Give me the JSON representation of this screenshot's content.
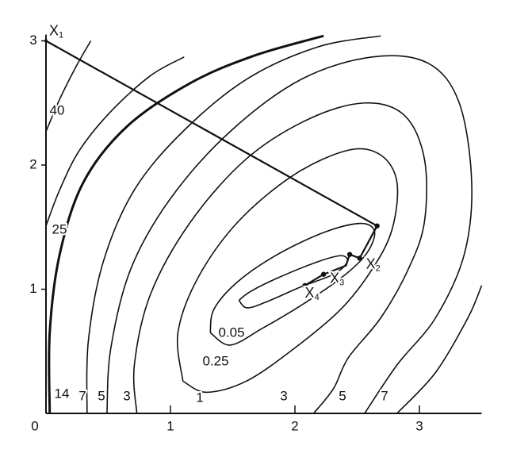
{
  "chart_data": {
    "type": "contour",
    "xlim": [
      0,
      3.5
    ],
    "ylim": [
      0,
      3.05
    ],
    "xticks": [
      0,
      1,
      2,
      3
    ],
    "yticks": [
      1,
      2,
      3
    ],
    "color": "#111111",
    "contours": [
      {
        "level": 0.05,
        "x": [
          1.55,
          1.64,
          1.86,
          2.18,
          2.37,
          2.42,
          2.31,
          2.05,
          1.8,
          1.62,
          1.55
        ],
        "y": [
          0.91,
          0.98,
          1.09,
          1.22,
          1.27,
          1.22,
          1.12,
          1.02,
          0.91,
          0.85,
          0.91
        ]
      },
      {
        "level": 0.25,
        "x": [
          1.32,
          1.35,
          1.54,
          1.86,
          2.24,
          2.53,
          2.64,
          2.57,
          2.37,
          2.05,
          1.73,
          1.48,
          1.32
        ],
        "y": [
          0.65,
          0.84,
          1.06,
          1.28,
          1.46,
          1.53,
          1.46,
          1.28,
          1.09,
          0.87,
          0.68,
          0.55,
          0.65
        ]
      },
      {
        "level": 1,
        "x": [
          1.1,
          1.06,
          1.22,
          1.54,
          1.99,
          2.43,
          2.69,
          2.82,
          2.78,
          2.62,
          2.37,
          1.99,
          1.61,
          1.29,
          1.1
        ],
        "y": [
          0.26,
          0.65,
          1.09,
          1.54,
          1.92,
          2.12,
          2.08,
          1.86,
          1.48,
          1.16,
          0.84,
          0.52,
          0.26,
          0.17,
          0.26
        ]
      },
      {
        "level": 3,
        "x": [
          0.73,
          0.71,
          0.84,
          1.16,
          1.61,
          2.11,
          2.56,
          2.88,
          3.04,
          3.04,
          2.91,
          2.69,
          2.43,
          2.31,
          2.15
        ],
        "y": [
          0,
          0.39,
          0.96,
          1.54,
          2.05,
          2.37,
          2.5,
          2.4,
          2.05,
          1.54,
          1.16,
          0.77,
          0.45,
          0.2,
          0
        ]
      },
      {
        "level": 5,
        "x": [
          0.49,
          0.52,
          0.68,
          1.0,
          1.48,
          2.05,
          2.62,
          3.07,
          3.32,
          3.42,
          3.36,
          3.13,
          2.82,
          2.56
        ],
        "y": [
          0,
          0.52,
          1.16,
          1.73,
          2.27,
          2.69,
          2.87,
          2.82,
          2.5,
          1.86,
          1.28,
          0.77,
          0.39,
          0
        ]
      },
      {
        "level": 7,
        "x": [
          0.33,
          0.34,
          0.46,
          0.71,
          1.1,
          1.61,
          2.18,
          2.69,
          null,
          2.82,
          3.13,
          3.39,
          3.5
        ],
        "y": [
          0,
          0.58,
          1.22,
          1.8,
          2.27,
          2.69,
          2.95,
          3.04,
          null,
          0,
          0.33,
          0.77,
          1.03
        ]
      },
      {
        "level": 14,
        "x": [
          0.03,
          0.03,
          0.11,
          0.3,
          0.65,
          1.16,
          1.67,
          2.23
        ],
        "y": [
          0,
          0.65,
          1.28,
          1.86,
          2.31,
          2.66,
          2.88,
          3.04
        ]
      },
      {
        "level": 25,
        "x": [
          0,
          0.11,
          0.27,
          0.52,
          0.84,
          1.11
        ],
        "y": [
          1.51,
          1.8,
          2.12,
          2.43,
          2.72,
          2.87
        ]
      },
      {
        "level": 40,
        "x": [
          0,
          0.11,
          0.24,
          0.36
        ],
        "y": [
          2.27,
          2.53,
          2.79,
          3.0
        ]
      }
    ],
    "path": {
      "x": [
        0,
        2.66,
        2.52,
        2.44,
        2.41,
        2.23,
        2.08
      ],
      "y": [
        3.0,
        1.51,
        1.25,
        1.28,
        1.19,
        1.12,
        1.03
      ]
    },
    "labeled_points": [
      {
        "label": "X",
        "sub": "1",
        "x": 0,
        "y": 3.0
      },
      {
        "label": "X",
        "sub": "2",
        "x": 2.52,
        "y": 1.25
      },
      {
        "label": "X",
        "sub": "3",
        "x": 2.23,
        "y": 1.12
      },
      {
        "label": "X",
        "sub": "4",
        "x": 2.08,
        "y": 1.03
      }
    ]
  }
}
